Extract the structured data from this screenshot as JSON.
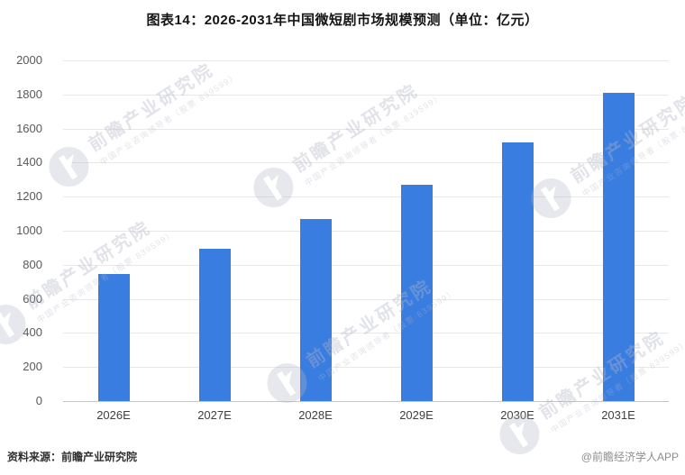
{
  "chart_data": {
    "type": "bar",
    "title": "图表14：2026-2031年中国微短剧市场规模预测（单位：亿元）",
    "categories": [
      "2026E",
      "2027E",
      "2028E",
      "2029E",
      "2030E",
      "2031E"
    ],
    "values": [
      745,
      895,
      1070,
      1270,
      1520,
      1810
    ],
    "unit": "亿元",
    "xlabel": "",
    "ylabel": "",
    "ylim": [
      0,
      2000
    ],
    "yticks": [
      2000,
      1800,
      1600,
      1400,
      1200,
      1000,
      800,
      600,
      400,
      200,
      0
    ],
    "grid": true,
    "legend": "none"
  },
  "watermark": {
    "brand_text": "前瞻产业研究院",
    "sub_text": "中国产业咨询领导者（股票·839599）",
    "logo": "qianzhan-logo"
  },
  "footer": {
    "source": "资料来源：前瞻产业研究院",
    "credit": "@前瞻经济学人APP"
  },
  "colors": {
    "bar": "#3a7de0",
    "gridline": "#e8e8e8",
    "axis_line": "#c6c6c6",
    "tick_label": "#595959",
    "watermark": "#b2b6c6"
  }
}
